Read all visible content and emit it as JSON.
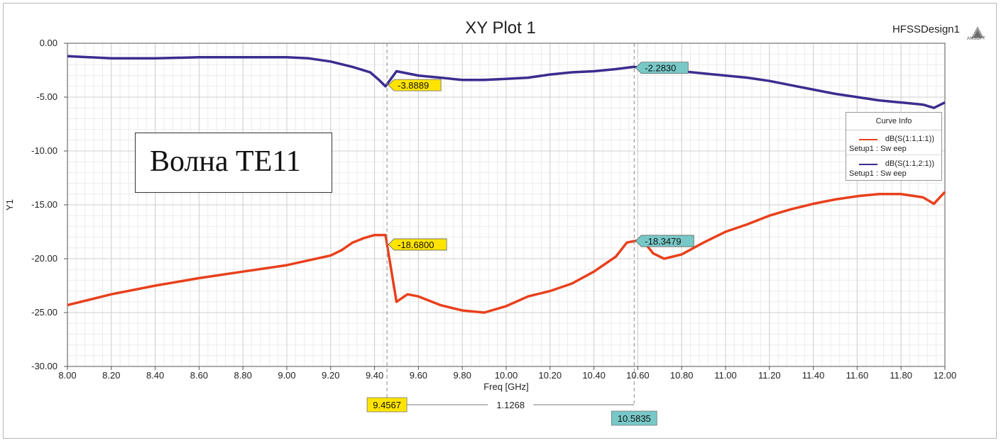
{
  "plot": {
    "title": "XY Plot 1",
    "design_name": "HFSSDesign1",
    "logo_text": "ANSOFT",
    "annotation": "Волна TE11"
  },
  "legend": {
    "title": "Curve Info",
    "items": [
      {
        "name": "dB(S(1:1,1:1))",
        "setup": "Setup1 : Sw eep",
        "color": "#e8401c"
      },
      {
        "name": "dB(S(1:1,2:1))",
        "setup": "Setup1 : Sw eep",
        "color": "#3a2d8f"
      }
    ]
  },
  "markers": {
    "x1": "9.4567",
    "x2": "10.5835",
    "delta": "1.1268",
    "m1_blue": "-3.8889",
    "m1_red": "-18.6800",
    "m2_blue": "-2.2830",
    "m2_red": "-18.3479",
    "m1_color": "#ffe400",
    "m2_color": "#78c8c8"
  },
  "chart_data": {
    "type": "line",
    "title": "XY Plot 1",
    "xlabel": "Freq [GHz]",
    "ylabel": "Y1",
    "xlim": [
      8.0,
      12.0
    ],
    "ylim": [
      -30.0,
      0.0
    ],
    "grid": true,
    "legend_position": "right",
    "x_ticks": [
      "8.00",
      "8.20",
      "8.40",
      "8.60",
      "8.80",
      "9.00",
      "9.20",
      "9.40",
      "9.60",
      "9.80",
      "10.00",
      "10.20",
      "10.40",
      "10.60",
      "10.80",
      "11.00",
      "11.20",
      "11.40",
      "11.60",
      "11.80",
      "12.00"
    ],
    "y_ticks": [
      "0.00",
      "-5.00",
      "-10.00",
      "-15.00",
      "-20.00",
      "-25.00",
      "-30.00"
    ],
    "series": [
      {
        "name": "dB(S(1:1,1:1))",
        "color": "#e8401c",
        "points": [
          [
            8.0,
            -24.3
          ],
          [
            8.2,
            -23.3
          ],
          [
            8.4,
            -22.5
          ],
          [
            8.6,
            -21.8
          ],
          [
            8.8,
            -21.2
          ],
          [
            9.0,
            -20.6
          ],
          [
            9.2,
            -19.7
          ],
          [
            9.25,
            -19.2
          ],
          [
            9.3,
            -18.5
          ],
          [
            9.35,
            -18.1
          ],
          [
            9.4,
            -17.8
          ],
          [
            9.45,
            -17.8
          ],
          [
            9.5,
            -24.0
          ],
          [
            9.55,
            -23.3
          ],
          [
            9.6,
            -23.5
          ],
          [
            9.7,
            -24.3
          ],
          [
            9.8,
            -24.8
          ],
          [
            9.9,
            -25.0
          ],
          [
            10.0,
            -24.4
          ],
          [
            10.1,
            -23.5
          ],
          [
            10.2,
            -23.0
          ],
          [
            10.3,
            -22.3
          ],
          [
            10.4,
            -21.2
          ],
          [
            10.5,
            -19.8
          ],
          [
            10.55,
            -18.5
          ],
          [
            10.6,
            -18.3
          ],
          [
            10.63,
            -18.5
          ],
          [
            10.67,
            -19.5
          ],
          [
            10.72,
            -20.0
          ],
          [
            10.8,
            -19.6
          ],
          [
            10.9,
            -18.5
          ],
          [
            11.0,
            -17.5
          ],
          [
            11.1,
            -16.8
          ],
          [
            11.2,
            -16.0
          ],
          [
            11.3,
            -15.4
          ],
          [
            11.4,
            -14.9
          ],
          [
            11.5,
            -14.5
          ],
          [
            11.6,
            -14.2
          ],
          [
            11.7,
            -14.0
          ],
          [
            11.8,
            -14.0
          ],
          [
            11.9,
            -14.3
          ],
          [
            11.95,
            -14.9
          ],
          [
            12.0,
            -13.8
          ]
        ]
      },
      {
        "name": "dB(S(1:1,2:1))",
        "color": "#3a2d8f",
        "points": [
          [
            8.0,
            -1.2
          ],
          [
            8.2,
            -1.4
          ],
          [
            8.4,
            -1.4
          ],
          [
            8.6,
            -1.3
          ],
          [
            8.8,
            -1.3
          ],
          [
            9.0,
            -1.3
          ],
          [
            9.1,
            -1.4
          ],
          [
            9.2,
            -1.7
          ],
          [
            9.3,
            -2.2
          ],
          [
            9.38,
            -2.7
          ],
          [
            9.42,
            -3.4
          ],
          [
            9.45,
            -4.0
          ],
          [
            9.5,
            -2.6
          ],
          [
            9.6,
            -3.0
          ],
          [
            9.7,
            -3.2
          ],
          [
            9.8,
            -3.4
          ],
          [
            9.9,
            -3.4
          ],
          [
            10.0,
            -3.3
          ],
          [
            10.1,
            -3.2
          ],
          [
            10.2,
            -2.9
          ],
          [
            10.3,
            -2.7
          ],
          [
            10.4,
            -2.6
          ],
          [
            10.5,
            -2.4
          ],
          [
            10.58,
            -2.2
          ],
          [
            10.7,
            -2.4
          ],
          [
            10.8,
            -2.6
          ],
          [
            10.9,
            -2.8
          ],
          [
            11.0,
            -3.0
          ],
          [
            11.1,
            -3.2
          ],
          [
            11.2,
            -3.5
          ],
          [
            11.3,
            -3.9
          ],
          [
            11.4,
            -4.3
          ],
          [
            11.5,
            -4.7
          ],
          [
            11.6,
            -5.0
          ],
          [
            11.7,
            -5.3
          ],
          [
            11.8,
            -5.5
          ],
          [
            11.9,
            -5.7
          ],
          [
            11.95,
            -6.0
          ],
          [
            12.0,
            -5.5
          ]
        ]
      }
    ]
  }
}
